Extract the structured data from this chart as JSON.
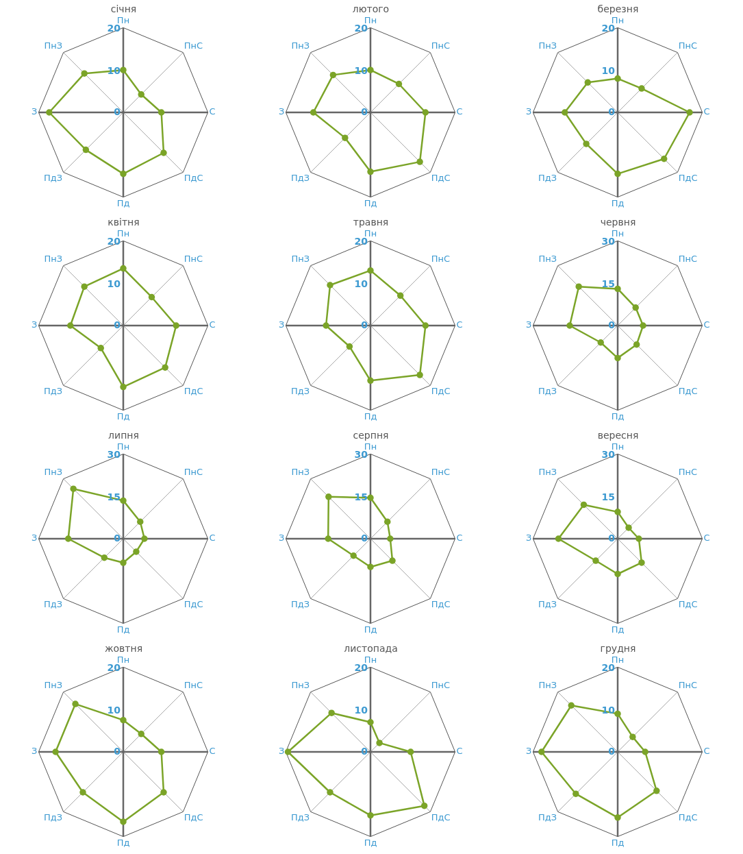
{
  "chart_data": [
    {
      "type": "radar",
      "title": "січня",
      "categories": [
        "Пн",
        "ПнС",
        "С",
        "ПдС",
        "Пд",
        "ПдЗ",
        "З",
        "ПнЗ"
      ],
      "series": [
        {
          "color": "#7ba428",
          "values": [
            10,
            6,
            9,
            13.5,
            14.5,
            12.5,
            17.5,
            13
          ]
        }
      ],
      "ylim": [
        0,
        20
      ],
      "yticks": [
        0,
        10,
        20
      ],
      "grid": true,
      "legend": false,
      "marker": "circle"
    },
    {
      "type": "radar",
      "title": "лютого",
      "categories": [
        "Пн",
        "ПнС",
        "С",
        "ПдС",
        "Пд",
        "ПдЗ",
        "З",
        "ПнЗ"
      ],
      "series": [
        {
          "color": "#7ba428",
          "values": [
            10,
            9.5,
            13,
            16.5,
            14,
            8.5,
            13.5,
            12.5
          ]
        }
      ],
      "ylim": [
        0,
        20
      ],
      "yticks": [
        0,
        10,
        20
      ],
      "grid": true,
      "legend": false,
      "marker": "circle"
    },
    {
      "type": "radar",
      "title": "березня",
      "categories": [
        "Пн",
        "ПнС",
        "С",
        "ПдС",
        "Пд",
        "ПдЗ",
        "З",
        "ПнЗ"
      ],
      "series": [
        {
          "color": "#7ba428",
          "values": [
            8,
            8,
            17,
            15.5,
            14.5,
            10.5,
            12.5,
            10
          ]
        }
      ],
      "ylim": [
        0,
        20
      ],
      "yticks": [
        0,
        10,
        20
      ],
      "grid": true,
      "legend": false,
      "marker": "circle"
    },
    {
      "type": "radar",
      "title": "квітня",
      "categories": [
        "Пн",
        "ПнС",
        "С",
        "ПдС",
        "Пд",
        "ПдЗ",
        "З",
        "ПнЗ"
      ],
      "series": [
        {
          "color": "#7ba428",
          "values": [
            13.5,
            9.5,
            12.5,
            14,
            14.5,
            7.5,
            12.5,
            13
          ]
        }
      ],
      "ylim": [
        0,
        20
      ],
      "yticks": [
        0,
        10,
        20
      ],
      "grid": true,
      "legend": false,
      "marker": "circle"
    },
    {
      "type": "radar",
      "title": "травня",
      "categories": [
        "Пн",
        "ПнС",
        "С",
        "ПдС",
        "Пд",
        "ПдЗ",
        "З",
        "ПнЗ"
      ],
      "series": [
        {
          "color": "#7ba428",
          "values": [
            13,
            10,
            13,
            16.5,
            13,
            7,
            10.5,
            13.5
          ]
        }
      ],
      "ylim": [
        0,
        20
      ],
      "yticks": [
        0,
        10,
        20
      ],
      "grid": true,
      "legend": false,
      "marker": "circle"
    },
    {
      "type": "radar",
      "title": "червня",
      "categories": [
        "Пн",
        "ПнС",
        "С",
        "ПдС",
        "Пд",
        "ПдЗ",
        "З",
        "ПнЗ"
      ],
      "series": [
        {
          "color": "#7ba428",
          "values": [
            13,
            9,
            9,
            9.5,
            11.5,
            8.5,
            17,
            19.5
          ]
        }
      ],
      "ylim": [
        0,
        30
      ],
      "yticks": [
        0,
        15,
        30
      ],
      "grid": true,
      "legend": false,
      "marker": "circle"
    },
    {
      "type": "radar",
      "title": "липня",
      "categories": [
        "Пн",
        "ПнС",
        "С",
        "ПдС",
        "Пд",
        "ПдЗ",
        "З",
        "ПнЗ"
      ],
      "series": [
        {
          "color": "#7ba428",
          "values": [
            13.5,
            8.5,
            7.5,
            6.5,
            8.5,
            9.5,
            19.5,
            25
          ]
        }
      ],
      "ylim": [
        0,
        30
      ],
      "yticks": [
        0,
        15,
        30
      ],
      "grid": true,
      "legend": false,
      "marker": "circle"
    },
    {
      "type": "radar",
      "title": "серпня",
      "categories": [
        "Пн",
        "ПнС",
        "С",
        "ПдС",
        "Пд",
        "ПдЗ",
        "З",
        "ПнЗ"
      ],
      "series": [
        {
          "color": "#7ba428",
          "values": [
            14.5,
            8.5,
            7,
            11,
            10,
            8.5,
            15,
            21
          ]
        }
      ],
      "ylim": [
        0,
        30
      ],
      "yticks": [
        0,
        15,
        30
      ],
      "grid": true,
      "legend": false,
      "marker": "circle"
    },
    {
      "type": "radar",
      "title": "вересня",
      "categories": [
        "Пн",
        "ПнС",
        "С",
        "ПдС",
        "Пд",
        "ПдЗ",
        "З",
        "ПнЗ"
      ],
      "series": [
        {
          "color": "#7ba428",
          "values": [
            9.5,
            5.5,
            7.5,
            12,
            12.5,
            11,
            21,
            17
          ]
        }
      ],
      "ylim": [
        0,
        30
      ],
      "yticks": [
        0,
        15,
        30
      ],
      "grid": true,
      "legend": false,
      "marker": "circle"
    },
    {
      "type": "radar",
      "title": "жовтня",
      "categories": [
        "Пн",
        "ПнС",
        "С",
        "ПдС",
        "Пд",
        "ПдЗ",
        "З",
        "ПнЗ"
      ],
      "series": [
        {
          "color": "#7ba428",
          "values": [
            7.5,
            6,
            9,
            13.5,
            16.5,
            13.5,
            16,
            16
          ]
        }
      ],
      "ylim": [
        0,
        20
      ],
      "yticks": [
        0,
        10,
        20
      ],
      "grid": true,
      "legend": false,
      "marker": "circle"
    },
    {
      "type": "radar",
      "title": "листопада",
      "categories": [
        "Пн",
        "ПнС",
        "С",
        "ПдС",
        "Пд",
        "ПдЗ",
        "З",
        "ПнЗ"
      ],
      "series": [
        {
          "color": "#7ba428",
          "values": [
            7,
            3,
            9.5,
            18,
            15,
            13.5,
            19.5,
            13
          ]
        }
      ],
      "ylim": [
        0,
        20
      ],
      "yticks": [
        0,
        10,
        20
      ],
      "grid": true,
      "legend": false,
      "marker": "circle"
    },
    {
      "type": "radar",
      "title": "грудня",
      "categories": [
        "Пн",
        "ПнС",
        "С",
        "ПдС",
        "Пд",
        "ПдЗ",
        "З",
        "ПнЗ"
      ],
      "series": [
        {
          "color": "#7ba428",
          "values": [
            9,
            5,
            6.5,
            13,
            15.5,
            14,
            18,
            15.5
          ]
        }
      ],
      "ylim": [
        0,
        20
      ],
      "yticks": [
        0,
        10,
        20
      ],
      "grid": true,
      "legend": false,
      "marker": "circle"
    }
  ]
}
